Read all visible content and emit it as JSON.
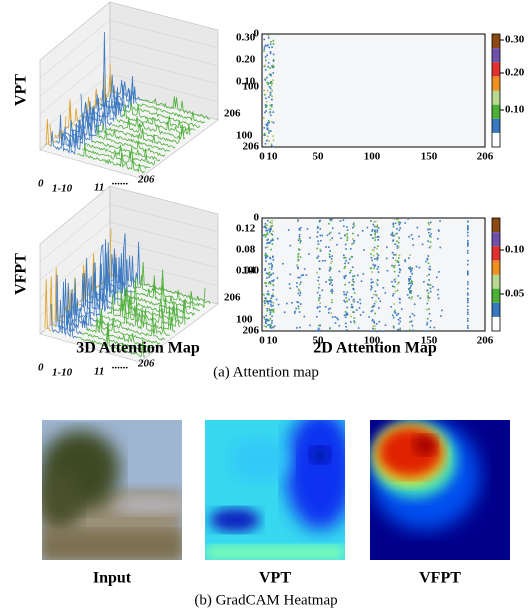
{
  "panel_a": {
    "rows": [
      {
        "label": "VPT",
        "z_ticks": [
          "0.30",
          "0.20",
          "0.10"
        ],
        "depth_ticks": [
          "206",
          "100"
        ],
        "x_labels": [
          "0",
          "1-10",
          "11",
          "......",
          "206"
        ],
        "map_y_ticks": [
          "0",
          "100",
          "206"
        ],
        "map_x_ticks": [
          "0",
          "10",
          "50",
          "100",
          "150",
          "206"
        ],
        "colorbar_ticks": [
          "0.30",
          "0.20",
          "0.10"
        ]
      },
      {
        "label": "VFPT",
        "z_ticks": [
          "0.12",
          "0.08",
          "0.04"
        ],
        "depth_ticks": [
          "206",
          "100"
        ],
        "x_labels": [
          "0",
          "1-10",
          "11",
          "......",
          "206"
        ],
        "map_y_ticks": [
          "0",
          "100",
          "206"
        ],
        "map_x_ticks": [
          "0",
          "10",
          "50",
          "100",
          "150",
          "206"
        ],
        "colorbar_ticks": [
          "0.10",
          "0.05"
        ]
      }
    ],
    "column_titles": [
      "3D Attention Map",
      "2D Attention Map"
    ],
    "caption": "(a) Attention map"
  },
  "panel_b": {
    "labels": [
      "Input",
      "VPT",
      "VFPT"
    ],
    "caption": "(b) GradCAM Heatmap"
  }
}
